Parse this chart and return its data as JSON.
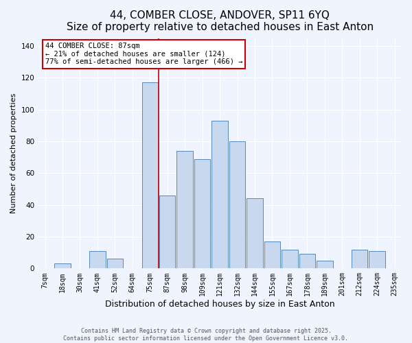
{
  "title": "44, COMBER CLOSE, ANDOVER, SP11 6YQ",
  "subtitle": "Size of property relative to detached houses in East Anton",
  "xlabel": "Distribution of detached houses by size in East Anton",
  "ylabel": "Number of detached properties",
  "categories": [
    "7sqm",
    "18sqm",
    "30sqm",
    "41sqm",
    "52sqm",
    "64sqm",
    "75sqm",
    "87sqm",
    "98sqm",
    "109sqm",
    "121sqm",
    "132sqm",
    "144sqm",
    "155sqm",
    "167sqm",
    "178sqm",
    "189sqm",
    "201sqm",
    "212sqm",
    "224sqm",
    "235sqm"
  ],
  "values": [
    0,
    3,
    0,
    11,
    6,
    0,
    117,
    46,
    74,
    69,
    93,
    80,
    44,
    17,
    12,
    9,
    5,
    0,
    12,
    11,
    0
  ],
  "bar_color": "#c8d8ee",
  "bar_edge_color": "#5588bb",
  "marker_label": "44 COMBER CLOSE: 87sqm",
  "annotation_line1": "← 21% of detached houses are smaller (124)",
  "annotation_line2": "77% of semi-detached houses are larger (466) →",
  "annotation_box_facecolor": "#ffffff",
  "annotation_box_edgecolor": "#cc0000",
  "marker_line_color": "#cc0000",
  "ylim": [
    0,
    145
  ],
  "yticks": [
    0,
    20,
    40,
    60,
    80,
    100,
    120,
    140
  ],
  "background_color": "#f0f4ff",
  "grid_color": "#ffffff",
  "footer_line1": "Contains HM Land Registry data © Crown copyright and database right 2025.",
  "footer_line2": "Contains public sector information licensed under the Open Government Licence v3.0.",
  "title_fontsize": 11,
  "xlabel_fontsize": 9,
  "ylabel_fontsize": 8,
  "tick_fontsize": 7,
  "footer_fontsize": 6,
  "annotation_fontsize": 7.5
}
